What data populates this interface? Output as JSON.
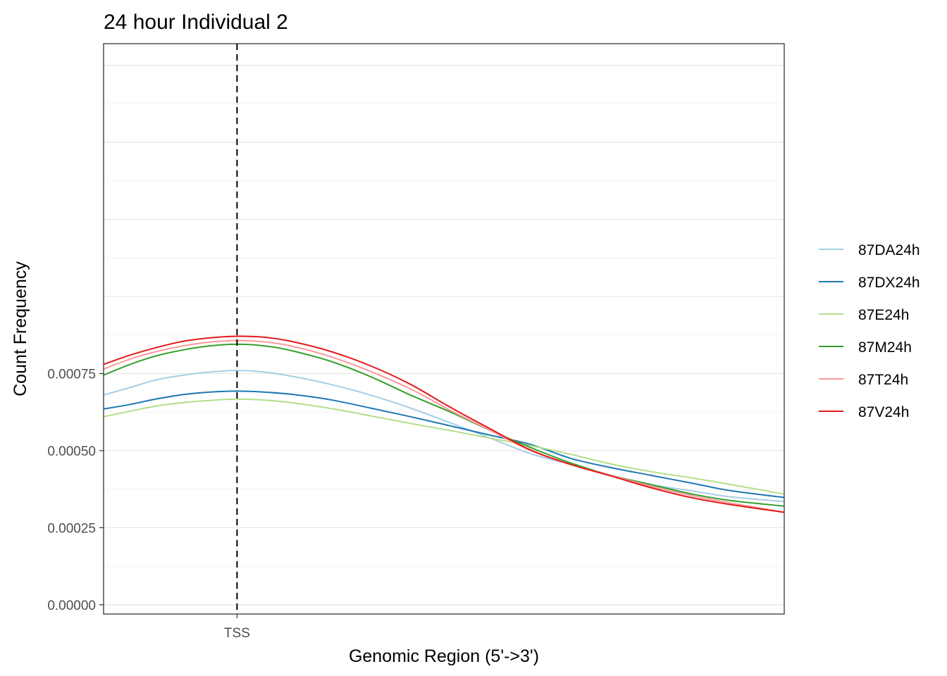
{
  "chart_data": {
    "type": "line",
    "title": "24 hour Individual 2",
    "xlabel": "Genomic Region (5'->3')",
    "ylabel": "Count Frequency",
    "x_ticks": [
      {
        "x": 0,
        "label": "TSS"
      }
    ],
    "xlim": [
      -1000,
      4100
    ],
    "ylim": [
      -3e-05,
      0.00182
    ],
    "y_ticks": [
      {
        "value": 0.0,
        "label": "0.00000"
      },
      {
        "value": 0.00025,
        "label": "0.00025"
      },
      {
        "value": 0.0005,
        "label": "0.00050"
      },
      {
        "value": 0.00075,
        "label": "0.00075"
      }
    ],
    "vline": {
      "x": 0,
      "style": "dashed"
    },
    "grid": true,
    "legend_position": "right",
    "x": [
      -1000,
      -800,
      -600,
      -400,
      -200,
      0,
      200,
      400,
      700,
      1000,
      1300,
      1600,
      1900,
      2200,
      2500,
      2800,
      3100,
      3400,
      3700,
      4100
    ],
    "series": [
      {
        "name": "87DA24h",
        "color": "#a6cee3",
        "values": [
          0.00068,
          0.000705,
          0.00073,
          0.000745,
          0.000755,
          0.00076,
          0.000755,
          0.000742,
          0.000715,
          0.00068,
          0.000638,
          0.00059,
          0.00054,
          0.00049,
          0.000455,
          0.00042,
          0.00039,
          0.00037,
          0.00035,
          0.000335
        ]
      },
      {
        "name": "87DX24h",
        "color": "#1f78b4",
        "values": [
          0.000635,
          0.00065,
          0.000668,
          0.000682,
          0.00069,
          0.000693,
          0.00069,
          0.000683,
          0.000665,
          0.000638,
          0.00061,
          0.00058,
          0.00055,
          0.00052,
          0.000475,
          0.000445,
          0.00042,
          0.000395,
          0.00037,
          0.000348
        ]
      },
      {
        "name": "87E24h",
        "color": "#b2df8a",
        "values": [
          0.00061,
          0.000628,
          0.000645,
          0.000656,
          0.000663,
          0.000667,
          0.000664,
          0.000656,
          0.000637,
          0.000613,
          0.000588,
          0.000565,
          0.00054,
          0.000516,
          0.000488,
          0.000457,
          0.000432,
          0.000412,
          0.00039,
          0.000359
        ]
      },
      {
        "name": "87M24h",
        "color": "#33a02c",
        "values": [
          0.000745,
          0.00078,
          0.000808,
          0.000827,
          0.00084,
          0.000845,
          0.00084,
          0.000825,
          0.00079,
          0.00074,
          0.00068,
          0.000625,
          0.000565,
          0.00051,
          0.00046,
          0.00042,
          0.00039,
          0.00036,
          0.000338,
          0.00032
        ]
      },
      {
        "name": "87T24h",
        "color": "#fb9a99",
        "values": [
          0.000765,
          0.000797,
          0.000822,
          0.00084,
          0.000852,
          0.000857,
          0.000853,
          0.00084,
          0.000805,
          0.000757,
          0.0007,
          0.00063,
          0.000565,
          0.0005,
          0.000455,
          0.00042,
          0.000385,
          0.000355,
          0.00033,
          0.0003
        ]
      },
      {
        "name": "87V24h",
        "color": "#e31a1c",
        "values": [
          0.00078,
          0.00081,
          0.000835,
          0.000855,
          0.000866,
          0.000871,
          0.000868,
          0.000855,
          0.000822,
          0.000775,
          0.000715,
          0.00064,
          0.00057,
          0.000502,
          0.000455,
          0.000418,
          0.00038,
          0.000348,
          0.000325,
          0.0003
        ]
      }
    ]
  }
}
